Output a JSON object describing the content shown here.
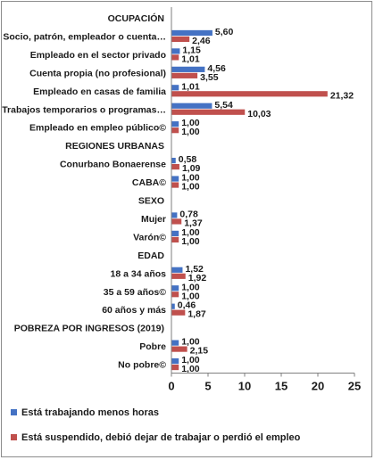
{
  "chart_data": {
    "type": "bar",
    "orientation": "horizontal",
    "xlim": [
      0,
      25
    ],
    "xticks": [
      0,
      5,
      10,
      15,
      20,
      25
    ],
    "grid": false,
    "legend_position": "bottom",
    "rows": [
      {
        "kind": "section",
        "label": "OCUPACIÓN"
      },
      {
        "kind": "category",
        "label": "Socio, patrón, empleador o cuenta…",
        "values": [
          5.6,
          2.46
        ],
        "value_labels": [
          "5,60",
          "2,46"
        ]
      },
      {
        "kind": "category",
        "label": "Empleado en el sector privado",
        "values": [
          1.15,
          1.01
        ],
        "value_labels": [
          "1,15",
          "1,01"
        ]
      },
      {
        "kind": "category",
        "label": "Cuenta propia (no profesional)",
        "values": [
          4.56,
          3.55
        ],
        "value_labels": [
          "4,56",
          "3,55"
        ]
      },
      {
        "kind": "category",
        "label": "Empleado en casas de familia",
        "values": [
          1.01,
          21.32
        ],
        "value_labels": [
          "1,01",
          "21,32"
        ]
      },
      {
        "kind": "category",
        "label": "Trabajos temporarios o programas…",
        "values": [
          5.54,
          10.03
        ],
        "value_labels": [
          "5,54",
          "10,03"
        ]
      },
      {
        "kind": "category",
        "label": "Empleado en empleo público©",
        "values": [
          1.0,
          1.0
        ],
        "value_labels": [
          "1,00",
          "1,00"
        ]
      },
      {
        "kind": "section",
        "label": "REGIONES URBANAS"
      },
      {
        "kind": "category",
        "label": "Conurbano Bonaerense",
        "values": [
          0.58,
          1.09
        ],
        "value_labels": [
          "0,58",
          "1,09"
        ]
      },
      {
        "kind": "category",
        "label": "CABA©",
        "values": [
          1.0,
          1.0
        ],
        "value_labels": [
          "1,00",
          "1,00"
        ]
      },
      {
        "kind": "section",
        "label": "SEXO"
      },
      {
        "kind": "category",
        "label": "Mujer",
        "values": [
          0.78,
          1.37
        ],
        "value_labels": [
          "0,78",
          "1,37"
        ]
      },
      {
        "kind": "category",
        "label": "Varón©",
        "values": [
          1.0,
          1.0
        ],
        "value_labels": [
          "1,00",
          "1,00"
        ]
      },
      {
        "kind": "section",
        "label": "EDAD"
      },
      {
        "kind": "category",
        "label": "18 a 34 años",
        "values": [
          1.52,
          1.92
        ],
        "value_labels": [
          "1,52",
          "1,92"
        ]
      },
      {
        "kind": "category",
        "label": "35 a 59 años©",
        "values": [
          1.0,
          1.0
        ],
        "value_labels": [
          "1,00",
          "1,00"
        ]
      },
      {
        "kind": "category",
        "label": "60 años y más",
        "values": [
          0.46,
          1.87
        ],
        "value_labels": [
          "0,46",
          "1,87"
        ]
      },
      {
        "kind": "section",
        "label": "POBREZA POR INGRESOS (2019)"
      },
      {
        "kind": "category",
        "label": "Pobre",
        "values": [
          1.0,
          2.15
        ],
        "value_labels": [
          "1,00",
          "2,15"
        ]
      },
      {
        "kind": "category",
        "label": "No pobre©",
        "values": [
          1.0,
          1.0
        ],
        "value_labels": [
          "1,00",
          "1,00"
        ]
      }
    ],
    "series": [
      {
        "name": "Está trabajando menos horas",
        "color": "#4472c4"
      },
      {
        "name": "Está suspendido, debió dejar de trabajar o perdió el empleo",
        "color": "#c0504d"
      }
    ]
  }
}
